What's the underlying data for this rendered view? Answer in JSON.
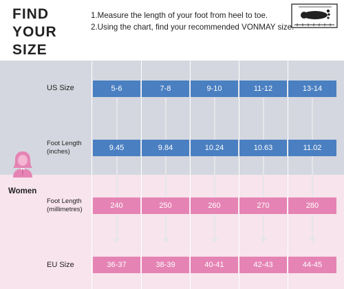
{
  "header": {
    "title_line1": "FIND",
    "title_line2": "YOUR SIZE",
    "step1": "1.Measure the length of your foot from heel to toe.",
    "step2": "2.Using the chart, find your recommended VONMAY size."
  },
  "gender": {
    "label": "Women"
  },
  "rows": {
    "us": {
      "label": "US Size",
      "values": [
        "5-6",
        "7-8",
        "9-10",
        "11-12",
        "13-14"
      ]
    },
    "inches": {
      "label_line1": "Foot Length",
      "label_line2": "(inches)",
      "values": [
        "9.45",
        "9.84",
        "10.24",
        "10.63",
        "11.02"
      ]
    },
    "mm": {
      "label_line1": "Foot Length",
      "label_line2": "(millimetres)",
      "values": [
        "240",
        "250",
        "260",
        "270",
        "280"
      ]
    },
    "eu": {
      "label": "EU Size",
      "values": [
        "36-37",
        "38-39",
        "40-41",
        "42-43",
        "44-45"
      ]
    }
  },
  "colors": {
    "blue_cell": "#4a7fc1",
    "pink_cell": "#e584b4",
    "blue_band": "#d4d7df",
    "pink_band": "#f7e4ec"
  },
  "icons": {
    "foot_measure": "foot-measure-icon",
    "woman": "woman-icon"
  }
}
